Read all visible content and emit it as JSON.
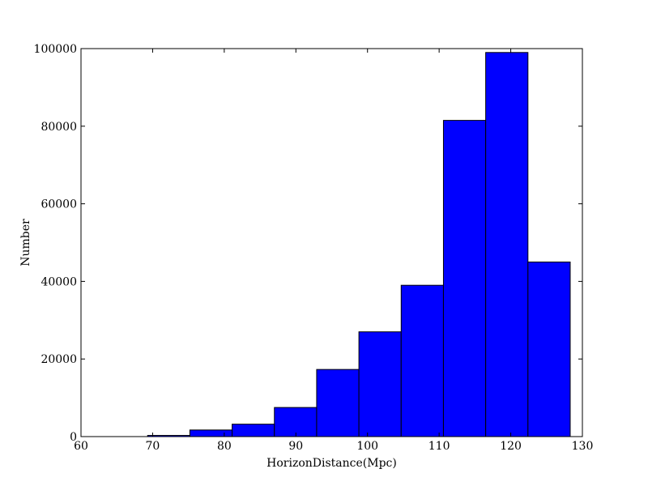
{
  "chart_data": {
    "type": "bar",
    "style": "histogram",
    "xlabel": "HorizonDistance(Mpc)",
    "ylabel": "Number",
    "xlim": [
      60,
      130
    ],
    "ylim": [
      0,
      100000
    ],
    "x_ticks": [
      60,
      70,
      80,
      90,
      100,
      110,
      120,
      130
    ],
    "y_ticks": [
      0,
      20000,
      40000,
      60000,
      80000,
      100000
    ],
    "bin_edges": [
      69.3,
      75.2,
      81.1,
      87.0,
      92.9,
      98.8,
      104.7,
      110.6,
      116.5,
      122.4,
      128.3
    ],
    "values": [
      300,
      1700,
      3200,
      7500,
      17300,
      27000,
      39000,
      81500,
      99000,
      45000
    ],
    "bar_color": "#0000ff",
    "edge_color": "#000000",
    "grid": false,
    "legend": "none"
  }
}
